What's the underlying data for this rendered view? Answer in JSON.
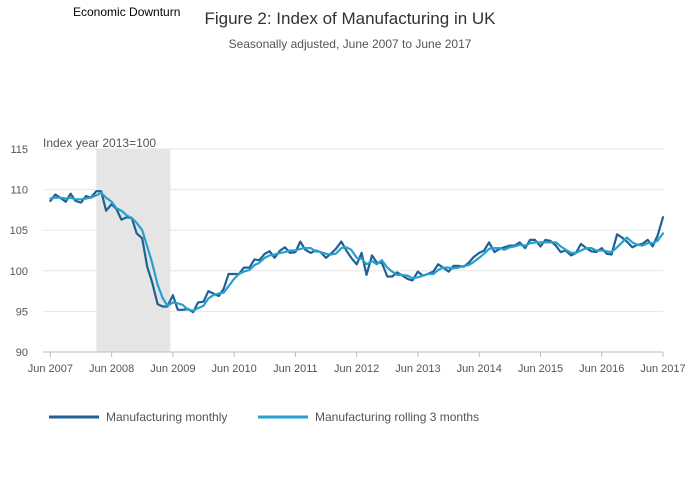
{
  "chart_data": {
    "type": "line",
    "title": "Figure 2: Index of Manufacturing in UK",
    "subtitle": "Seasonally adjusted, June 2007 to June 2017",
    "ylabel": "Index year 2013=100",
    "ylim": [
      90,
      115
    ],
    "yticks": [
      90,
      95,
      100,
      105,
      110,
      115
    ],
    "xlim": [
      2007.3,
      2017.42
    ],
    "xticks": [
      {
        "value": 2007.42,
        "label": "Jun 2007"
      },
      {
        "value": 2008.42,
        "label": "Jun 2008"
      },
      {
        "value": 2009.42,
        "label": "Jun 2009"
      },
      {
        "value": 2010.42,
        "label": "Jun 2010"
      },
      {
        "value": 2011.42,
        "label": "Jun 2011"
      },
      {
        "value": 2012.42,
        "label": "Jun 2012"
      },
      {
        "value": 2013.42,
        "label": "Jun 2013"
      },
      {
        "value": 2014.42,
        "label": "Jun 2014"
      },
      {
        "value": 2015.42,
        "label": "Jun 2015"
      },
      {
        "value": 2016.42,
        "label": "Jun 2016"
      },
      {
        "value": 2017.42,
        "label": "Jun 2017"
      }
    ],
    "grid": true,
    "legend_position": "bottom-left",
    "shaded_region": {
      "label": "Economic Downturn",
      "x_start": 2008.17,
      "x_end": 2009.38,
      "color": "#e5e5e5"
    },
    "series": [
      {
        "name": "Manufacturing monthly",
        "color": "#206095",
        "x": [
          2007.42,
          2007.5,
          2007.58,
          2007.67,
          2007.75,
          2007.83,
          2007.92,
          2008.0,
          2008.08,
          2008.17,
          2008.25,
          2008.33,
          2008.42,
          2008.5,
          2008.58,
          2008.67,
          2008.75,
          2008.83,
          2008.92,
          2009.0,
          2009.08,
          2009.17,
          2009.25,
          2009.33,
          2009.42,
          2009.5,
          2009.58,
          2009.67,
          2009.75,
          2009.83,
          2009.92,
          2010.0,
          2010.08,
          2010.17,
          2010.25,
          2010.33,
          2010.42,
          2010.5,
          2010.58,
          2010.67,
          2010.75,
          2010.83,
          2010.92,
          2011.0,
          2011.08,
          2011.17,
          2011.25,
          2011.33,
          2011.42,
          2011.5,
          2011.58,
          2011.67,
          2011.75,
          2011.83,
          2011.92,
          2012.0,
          2012.08,
          2012.17,
          2012.25,
          2012.33,
          2012.42,
          2012.5,
          2012.58,
          2012.67,
          2012.75,
          2012.83,
          2012.92,
          2013.0,
          2013.08,
          2013.17,
          2013.25,
          2013.33,
          2013.42,
          2013.5,
          2013.58,
          2013.67,
          2013.75,
          2013.83,
          2013.92,
          2014.0,
          2014.08,
          2014.17,
          2014.25,
          2014.33,
          2014.42,
          2014.5,
          2014.58,
          2014.67,
          2014.75,
          2014.83,
          2014.92,
          2015.0,
          2015.08,
          2015.17,
          2015.25,
          2015.33,
          2015.42,
          2015.5,
          2015.58,
          2015.67,
          2015.75,
          2015.83,
          2015.92,
          2016.0,
          2016.08,
          2016.17,
          2016.25,
          2016.33,
          2016.42,
          2016.5,
          2016.58,
          2016.67,
          2016.75,
          2016.83,
          2016.92,
          2017.0,
          2017.08,
          2017.17,
          2017.25,
          2017.33,
          2017.42
        ],
        "values": [
          108.6,
          109.4,
          109.0,
          108.5,
          109.5,
          108.6,
          108.4,
          109.2,
          109.0,
          109.8,
          109.8,
          107.4,
          108.2,
          107.6,
          106.3,
          106.6,
          106.5,
          104.6,
          104.0,
          100.5,
          98.6,
          95.9,
          95.6,
          95.6,
          97.0,
          95.2,
          95.2,
          95.3,
          94.9,
          96.1,
          96.2,
          97.5,
          97.2,
          96.9,
          97.8,
          99.6,
          99.6,
          99.6,
          100.4,
          100.4,
          101.4,
          101.3,
          102.1,
          102.4,
          101.6,
          102.5,
          102.9,
          102.2,
          102.3,
          103.6,
          102.6,
          102.2,
          102.5,
          102.3,
          101.6,
          102.1,
          102.7,
          103.6,
          102.5,
          101.6,
          100.8,
          102.2,
          99.5,
          101.9,
          101.0,
          101.0,
          99.3,
          99.3,
          99.8,
          99.4,
          99.0,
          98.8,
          99.9,
          99.4,
          99.6,
          99.9,
          100.8,
          100.4,
          99.9,
          100.6,
          100.6,
          100.5,
          101.0,
          101.7,
          102.2,
          102.5,
          103.5,
          102.3,
          102.7,
          102.9,
          103.1,
          103.1,
          103.5,
          102.8,
          103.8,
          103.8,
          103.0,
          103.8,
          103.7,
          103.1,
          102.3,
          102.5,
          101.9,
          102.2,
          103.3,
          102.8,
          102.4,
          102.3,
          102.8,
          102.1,
          102.0,
          104.5,
          104.1,
          103.6,
          102.9,
          103.2,
          103.3,
          103.8,
          103.0,
          104.3,
          106.6
        ]
      },
      {
        "name": "Manufacturing rolling 3 months",
        "color": "#27a0cc",
        "x": [
          2007.42,
          2007.5,
          2007.58,
          2007.67,
          2007.75,
          2007.83,
          2007.92,
          2008.0,
          2008.08,
          2008.17,
          2008.25,
          2008.33,
          2008.42,
          2008.5,
          2008.58,
          2008.67,
          2008.75,
          2008.83,
          2008.92,
          2009.0,
          2009.08,
          2009.17,
          2009.25,
          2009.33,
          2009.42,
          2009.5,
          2009.58,
          2009.67,
          2009.75,
          2009.83,
          2009.92,
          2010.0,
          2010.08,
          2010.17,
          2010.25,
          2010.33,
          2010.42,
          2010.5,
          2010.58,
          2010.67,
          2010.75,
          2010.83,
          2010.92,
          2011.0,
          2011.08,
          2011.17,
          2011.25,
          2011.33,
          2011.42,
          2011.5,
          2011.58,
          2011.67,
          2011.75,
          2011.83,
          2011.92,
          2012.0,
          2012.08,
          2012.17,
          2012.25,
          2012.33,
          2012.42,
          2012.5,
          2012.58,
          2012.67,
          2012.75,
          2012.83,
          2012.92,
          2013.0,
          2013.08,
          2013.17,
          2013.25,
          2013.33,
          2013.42,
          2013.5,
          2013.58,
          2013.67,
          2013.75,
          2013.83,
          2013.92,
          2014.0,
          2014.08,
          2014.17,
          2014.25,
          2014.33,
          2014.42,
          2014.5,
          2014.58,
          2014.67,
          2014.75,
          2014.83,
          2014.92,
          2015.0,
          2015.08,
          2015.17,
          2015.25,
          2015.33,
          2015.42,
          2015.5,
          2015.58,
          2015.67,
          2015.75,
          2015.83,
          2015.92,
          2016.0,
          2016.08,
          2016.17,
          2016.25,
          2016.33,
          2016.42,
          2016.5,
          2016.58,
          2016.67,
          2016.75,
          2016.83,
          2016.92,
          2017.0,
          2017.08,
          2017.17,
          2017.25,
          2017.33,
          2017.42
        ],
        "values": [
          108.9,
          109.0,
          109.0,
          108.9,
          109.0,
          108.8,
          108.8,
          108.9,
          109.0,
          109.3,
          109.6,
          109.0,
          108.5,
          107.7,
          107.4,
          106.8,
          106.5,
          105.9,
          105.0,
          103.0,
          101.0,
          98.3,
          96.7,
          95.7,
          96.1,
          96.0,
          95.8,
          95.2,
          95.1,
          95.4,
          95.7,
          96.6,
          97.0,
          97.2,
          97.3,
          98.1,
          99.0,
          99.6,
          99.9,
          100.1,
          100.7,
          101.0,
          101.6,
          101.9,
          102.0,
          102.2,
          102.3,
          102.5,
          102.5,
          102.7,
          102.8,
          102.8,
          102.4,
          102.3,
          102.1,
          102.0,
          102.1,
          102.8,
          102.9,
          102.6,
          101.6,
          101.5,
          100.8,
          101.2,
          100.8,
          101.3,
          100.4,
          99.9,
          99.5,
          99.5,
          99.4,
          99.1,
          99.2,
          99.4,
          99.6,
          99.6,
          100.1,
          100.4,
          100.4,
          100.3,
          100.4,
          100.6,
          100.7,
          101.1,
          101.6,
          102.1,
          102.7,
          102.8,
          102.8,
          102.6,
          102.9,
          103.0,
          103.2,
          103.1,
          103.4,
          103.5,
          103.5,
          103.5,
          103.5,
          103.5,
          103.0,
          102.6,
          102.2,
          102.2,
          102.5,
          102.8,
          102.8,
          102.5,
          102.5,
          102.4,
          102.3,
          102.9,
          103.5,
          104.1,
          103.5,
          103.2,
          103.1,
          103.4,
          103.4,
          103.7,
          104.6
        ]
      }
    ]
  }
}
